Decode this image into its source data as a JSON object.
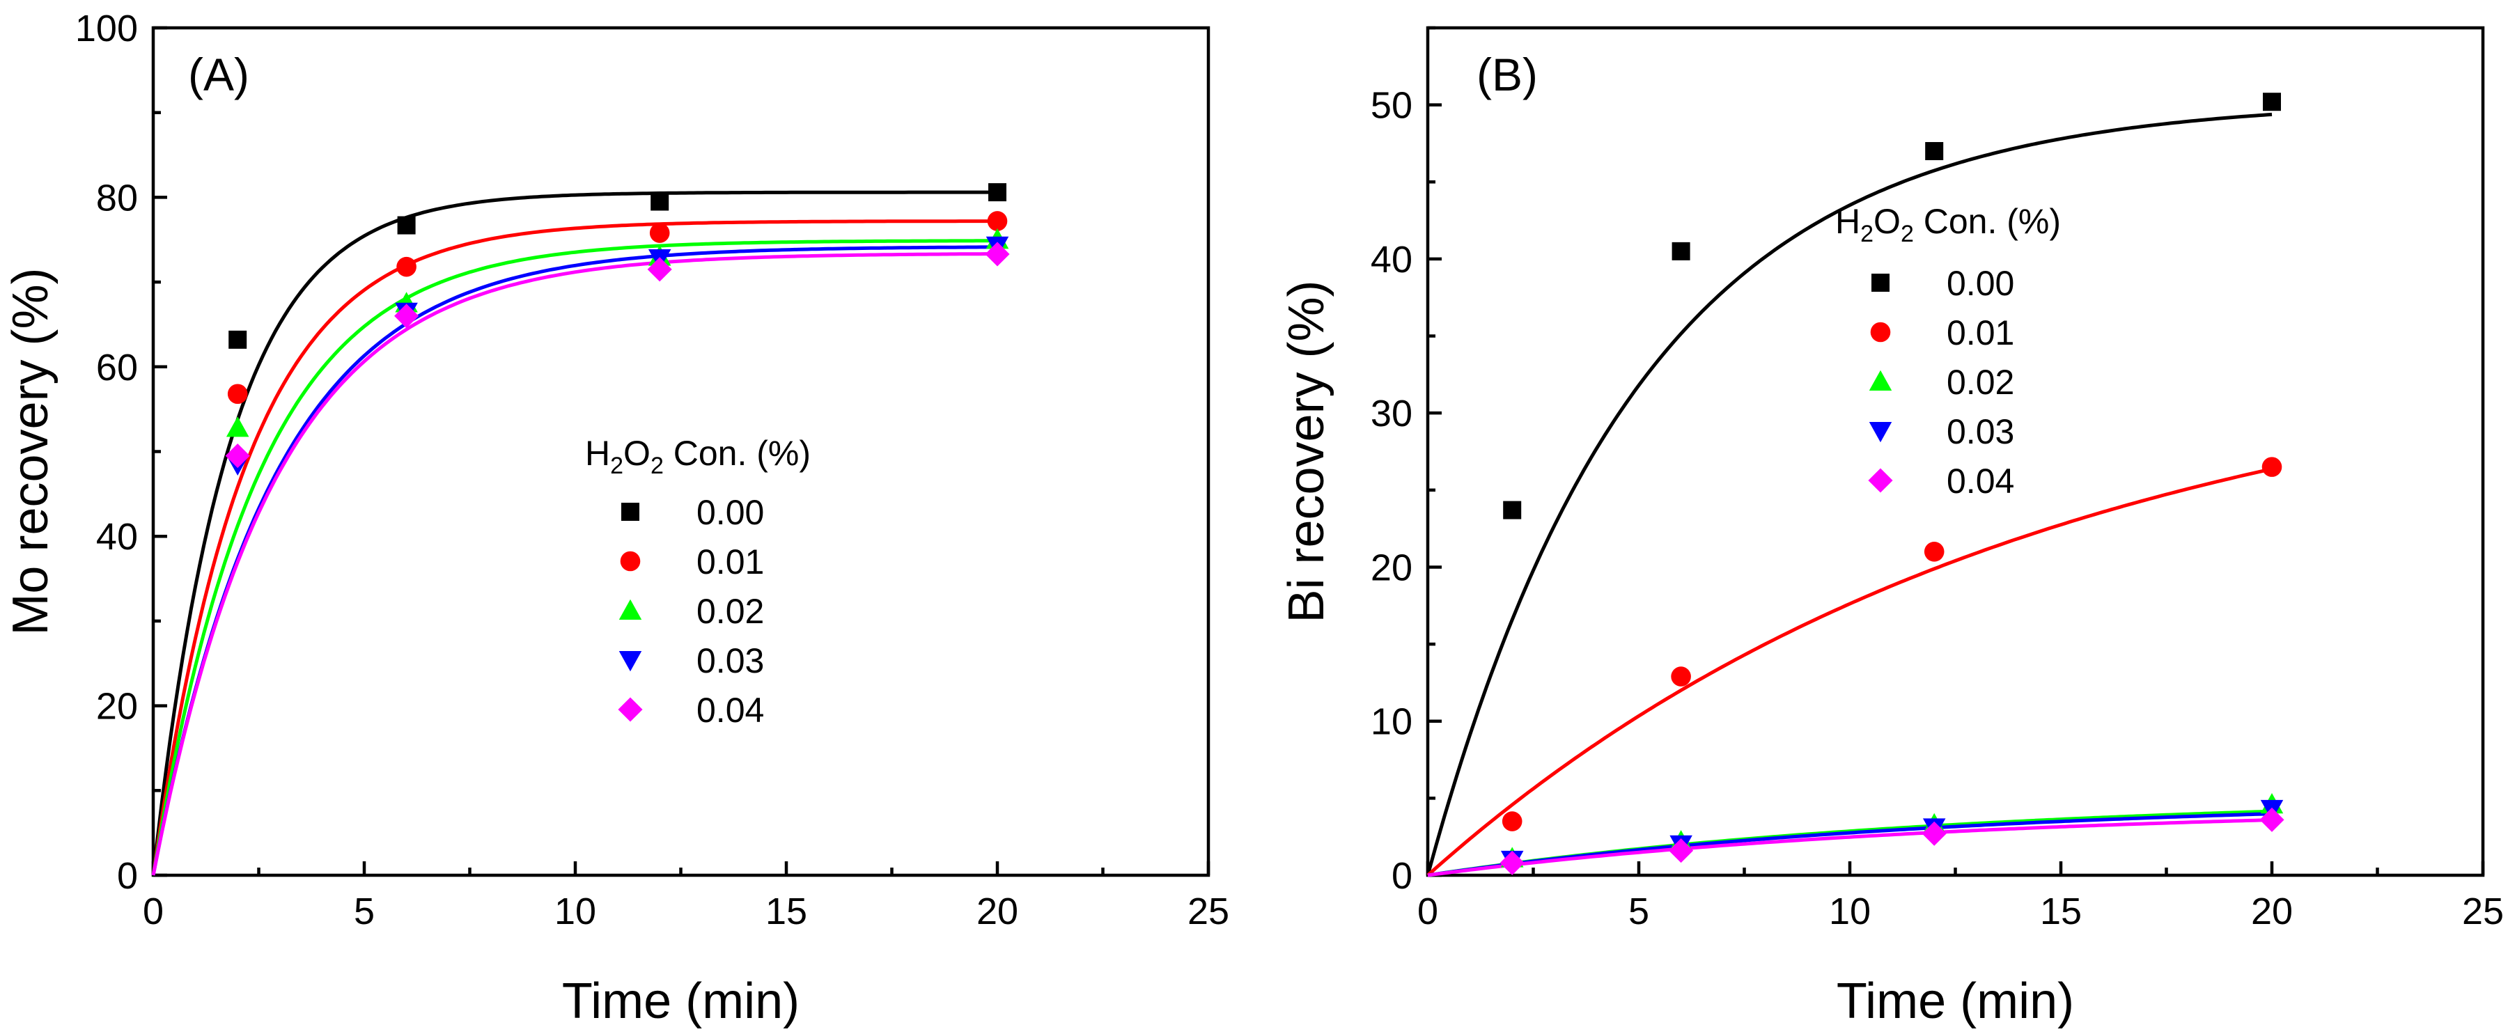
{
  "chart_data": [
    {
      "type": "scatter",
      "panel_label": "(A)",
      "xlabel": "Time (min)",
      "ylabel": "Mo recovery (%)",
      "xlim": [
        0,
        25
      ],
      "ylim": [
        0,
        100
      ],
      "xticks": [
        0,
        5,
        10,
        15,
        20,
        25
      ],
      "yticks": [
        0,
        20,
        40,
        60,
        80,
        100
      ],
      "x": [
        2,
        6,
        12,
        20
      ],
      "legend": {
        "title_parts": {
          "base": "H",
          "sub1": "2",
          "mid": "O",
          "sub2": "2",
          "rest": " Con. (%)"
        },
        "placement": "center"
      },
      "series": [
        {
          "name": "0.00",
          "color": "#000000",
          "marker": "square",
          "values": [
            63.2,
            76.7,
            79.5,
            80.6
          ],
          "fit": {
            "plateau": 80.6,
            "rate": 0.55
          }
        },
        {
          "name": "0.01",
          "color": "#ff0000",
          "marker": "circle",
          "values": [
            56.8,
            71.8,
            75.8,
            77.2
          ],
          "fit": {
            "plateau": 77.2,
            "rate": 0.45
          }
        },
        {
          "name": "0.02",
          "color": "#00ff00",
          "marker": "triangle-up",
          "values": [
            52.8,
            67.5,
            73.0,
            75.0
          ],
          "fit": {
            "plateau": 74.9,
            "rate": 0.4
          }
        },
        {
          "name": "0.03",
          "color": "#0000ff",
          "marker": "triangle-down",
          "values": [
            48.5,
            66.5,
            72.8,
            74.3
          ],
          "fit": {
            "plateau": 74.2,
            "rate": 0.35
          }
        },
        {
          "name": "0.04",
          "color": "#ff00ff",
          "marker": "diamond",
          "values": [
            49.5,
            66.0,
            71.5,
            73.3
          ],
          "fit": {
            "plateau": 73.4,
            "rate": 0.35
          }
        }
      ]
    },
    {
      "type": "scatter",
      "panel_label": "(B)",
      "xlabel": "Time (min)",
      "ylabel": "Bi recovery (%)",
      "xlim": [
        0,
        25
      ],
      "ylim": [
        0,
        55
      ],
      "xticks": [
        0,
        5,
        10,
        15,
        20,
        25
      ],
      "yticks": [
        0,
        10,
        20,
        30,
        40,
        50
      ],
      "x": [
        2,
        6,
        12,
        20
      ],
      "legend": {
        "title_parts": {
          "base": "H",
          "sub1": "2",
          "mid": "O",
          "sub2": "2",
          "rest": " Con. (%)"
        },
        "placement": "center-right"
      },
      "series": [
        {
          "name": "0.00",
          "color": "#000000",
          "marker": "square",
          "values": [
            23.7,
            40.5,
            47.0,
            50.2
          ],
          "fit": {
            "plateau": 50.3,
            "rate": 0.2
          }
        },
        {
          "name": "0.01",
          "color": "#ff0000",
          "marker": "circle",
          "values": [
            3.5,
            12.9,
            21.0,
            26.5
          ],
          "fit": {
            "plateau": 35.0,
            "rate": 0.07
          }
        },
        {
          "name": "0.02",
          "color": "#00ff00",
          "marker": "triangle-up",
          "values": [
            1.1,
            2.2,
            3.3,
            4.6
          ],
          "fit": {
            "plateau": 5.2,
            "rate": 0.08
          }
        },
        {
          "name": "0.03",
          "color": "#0000ff",
          "marker": "triangle-down",
          "values": [
            1.0,
            2.0,
            3.1,
            4.3
          ],
          "fit": {
            "plateau": 5.0,
            "rate": 0.08
          }
        },
        {
          "name": "0.04",
          "color": "#ff00ff",
          "marker": "diamond",
          "values": [
            0.8,
            1.6,
            2.7,
            3.6
          ],
          "fit": {
            "plateau": 4.5,
            "rate": 0.08
          }
        }
      ]
    }
  ]
}
